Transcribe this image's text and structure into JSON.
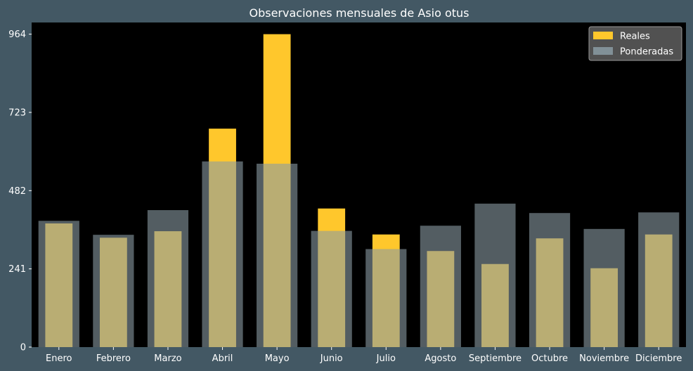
{
  "chart_data": {
    "type": "bar",
    "title": "Observaciones mensuales de Asio otus",
    "xlabel": "",
    "ylabel": "",
    "categories": [
      "Enero",
      "Febrero",
      "Marzo",
      "Abril",
      "Mayo",
      "Junio",
      "Julio",
      "Agosto",
      "Septiembre",
      "Octubre",
      "Noviembre",
      "Diciembre"
    ],
    "series": [
      {
        "name": "Reales",
        "color": "#FFC72C",
        "values": [
          381,
          337,
          357,
          673,
          964,
          427,
          347,
          296,
          256,
          335,
          243,
          347
        ]
      },
      {
        "name": "Ponderadas",
        "color": "#8A9BA3",
        "opacity": 0.6,
        "values": [
          389,
          346,
          422,
          572,
          565,
          358,
          302,
          374,
          442,
          413,
          364,
          415
        ]
      }
    ],
    "yticks": [
      "0",
      "241",
      "482",
      "723",
      "964"
    ],
    "ylim": [
      0,
      1000
    ],
    "grid": false,
    "legend_position": "top-right",
    "plot_background": "#000000",
    "figure_background": "#435864"
  }
}
